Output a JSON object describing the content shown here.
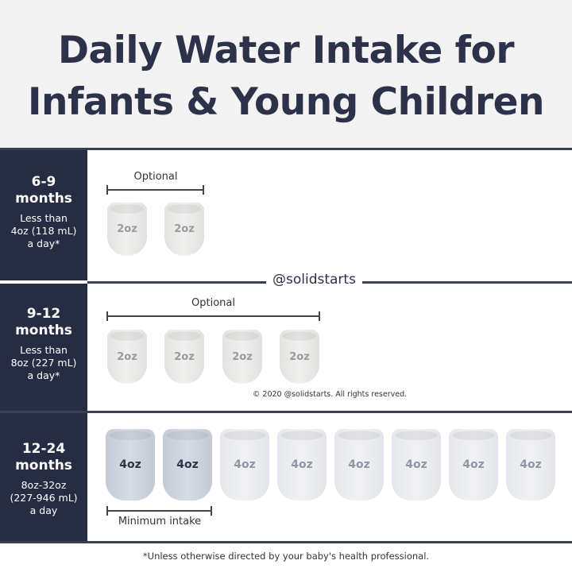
{
  "title": {
    "line1": "Daily Water Intake for",
    "line2": "Infants & Young Children"
  },
  "watermark": "@solidstarts",
  "copyright": "© 2020 @solidstarts. All rights reserved.",
  "footnote": "*Unless otherwise directed by your baby's health professional.",
  "colors": {
    "navy": "#262d42",
    "min_cup": "#c8cfdb",
    "cup": "#e8eaee"
  },
  "rows": [
    {
      "age": "6-9",
      "unit": "months",
      "desc": [
        "Less than",
        "4oz (118 mL)",
        "a day*"
      ],
      "bracket_label": "Optional",
      "cups": [
        "2oz",
        "2oz"
      ]
    },
    {
      "age": "9-12",
      "unit": "months",
      "desc": [
        "Less than",
        "8oz (227 mL)",
        "a day*"
      ],
      "bracket_label": "Optional",
      "cups": [
        "2oz",
        "2oz",
        "2oz",
        "2oz"
      ]
    },
    {
      "age": "12-24",
      "unit": "months",
      "desc": [
        "8oz-32oz",
        "(227-946 mL)",
        "a day"
      ],
      "bracket_label": "Minimum intake",
      "cups": [
        "4oz",
        "4oz",
        "4oz",
        "4oz",
        "4oz",
        "4oz",
        "4oz",
        "4oz"
      ]
    }
  ]
}
